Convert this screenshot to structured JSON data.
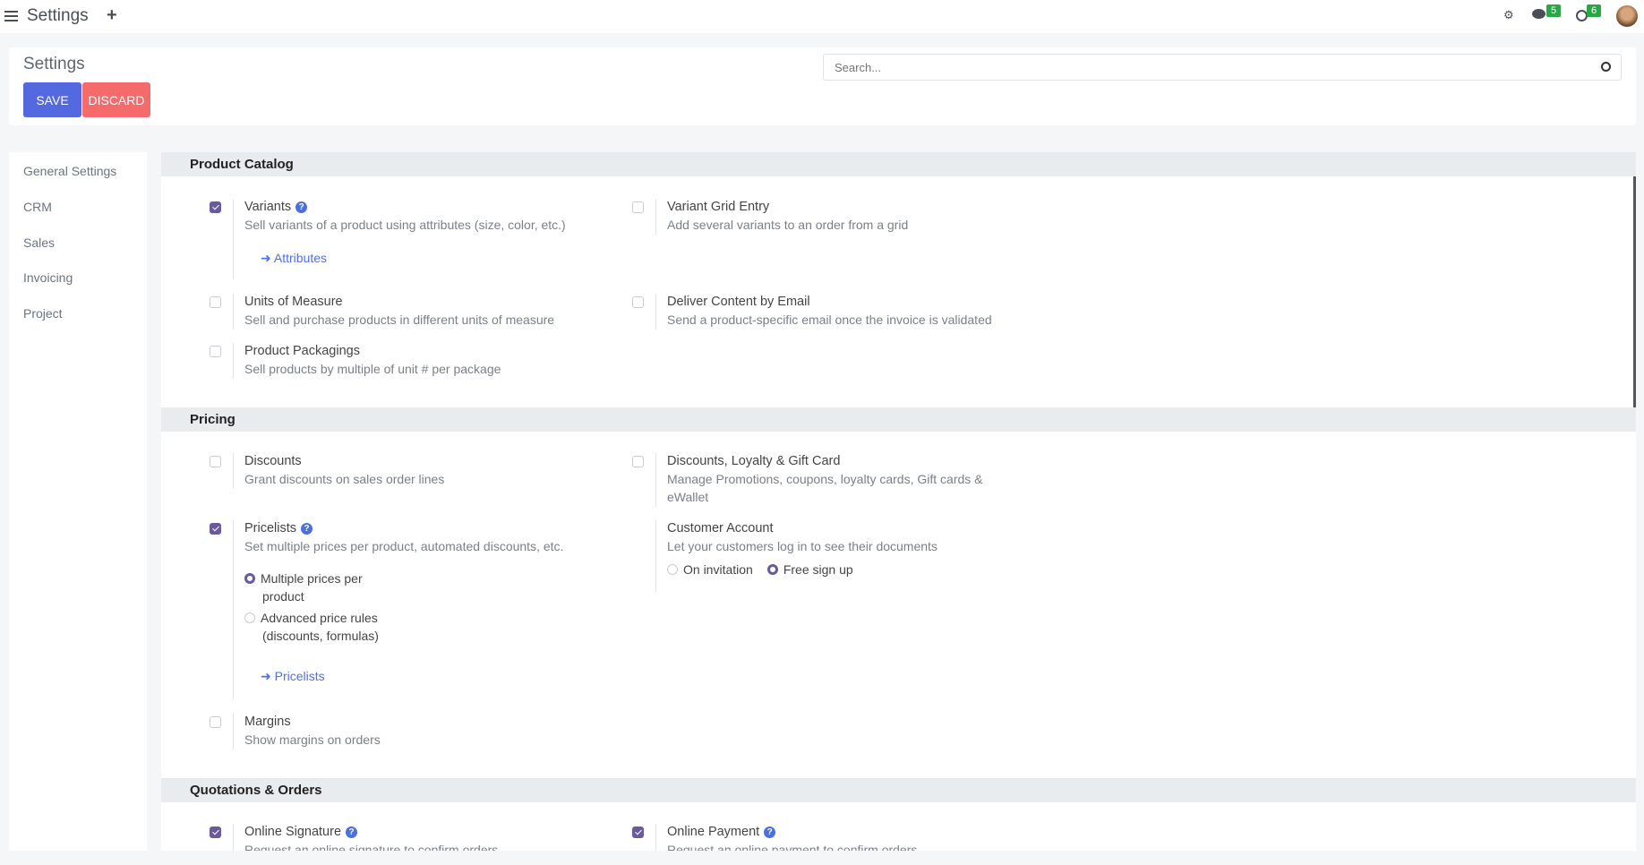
{
  "topbar": {
    "title": "Settings",
    "messages_count": "5",
    "activities_count": "6",
    "icons": [
      "menu-icon",
      "plus-icon",
      "bug-icon",
      "chat-icon",
      "clock-icon",
      "avatar"
    ]
  },
  "header": {
    "title": "Settings",
    "save": "SAVE",
    "discard": "DISCARD",
    "search_placeholder": "Search..."
  },
  "sidebar": {
    "items": [
      "General Settings",
      "CRM",
      "Sales",
      "Invoicing",
      "Project"
    ]
  },
  "colors": {
    "primary": "#5469e0",
    "danger": "#f56a6a",
    "checkbox": "#6a5a9c",
    "link": "#4f6fe6",
    "badge": "#28a745"
  },
  "sections": {
    "catalog": {
      "title": "Product Catalog",
      "variants": {
        "title": "Variants",
        "desc": "Sell variants of a product using attributes (size, color, etc.)",
        "link": "Attributes",
        "checked": true
      },
      "grid": {
        "title": "Variant Grid Entry",
        "desc": "Add several variants to an order from a grid",
        "checked": false
      },
      "uom": {
        "title": "Units of Measure",
        "desc": "Sell and purchase products in different units of measure",
        "checked": false
      },
      "deliver": {
        "title": "Deliver Content by Email",
        "desc": "Send a product-specific email once the invoice is validated",
        "checked": false
      },
      "packaging": {
        "title": "Product Packagings",
        "desc": "Sell products by multiple of unit # per package",
        "checked": false
      }
    },
    "pricing": {
      "title": "Pricing",
      "discounts": {
        "title": "Discounts",
        "desc": "Grant discounts on sales order lines",
        "checked": false
      },
      "loyalty": {
        "title": "Discounts, Loyalty & Gift Card",
        "desc": "Manage Promotions, coupons, loyalty cards, Gift cards & eWallet",
        "checked": false
      },
      "pricelists": {
        "title": "Pricelists",
        "desc": "Set multiple prices per product, automated discounts, etc.",
        "opt1": "Multiple prices per product",
        "opt2": "Advanced price rules (discounts, formulas)",
        "link": "Pricelists",
        "checked": true,
        "selected": "Multiple prices per product"
      },
      "account": {
        "title": "Customer Account",
        "desc": "Let your customers log in to see their documents",
        "opt1": "On invitation",
        "opt2": "Free sign up",
        "selected": "Free sign up"
      },
      "margins": {
        "title": "Margins",
        "desc": "Show margins on orders",
        "checked": false
      }
    },
    "quotations": {
      "title": "Quotations & Orders",
      "signature": {
        "title": "Online Signature",
        "desc": "Request an online signature to confirm orders",
        "checked": true
      },
      "payment": {
        "title": "Online Payment",
        "desc": "Request an online payment to confirm orders",
        "checked": true
      }
    }
  }
}
